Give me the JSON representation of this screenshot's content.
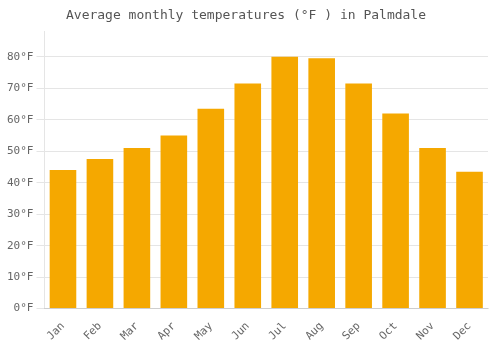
{
  "chart_data": {
    "type": "bar",
    "title": "Average monthly temperatures (°F ) in Palmdale",
    "categories": [
      "Jan",
      "Feb",
      "Mar",
      "Apr",
      "May",
      "Jun",
      "Jul",
      "Aug",
      "Sep",
      "Oct",
      "Nov",
      "Dec"
    ],
    "values": [
      44,
      47.5,
      51,
      55,
      63.5,
      71.5,
      80,
      79.5,
      71.5,
      62,
      51,
      43.5
    ],
    "color": "#F5A800",
    "ylim": [
      0,
      88
    ],
    "yticks": [
      {
        "value": 0,
        "label": "0°F"
      },
      {
        "value": 10,
        "label": "10°F"
      },
      {
        "value": 20,
        "label": "20°F"
      },
      {
        "value": 30,
        "label": "30°F"
      },
      {
        "value": 40,
        "label": "40°F"
      },
      {
        "value": 50,
        "label": "50°F"
      },
      {
        "value": 60,
        "label": "60°F"
      },
      {
        "value": 70,
        "label": "70°F"
      },
      {
        "value": 80,
        "label": "80°F"
      }
    ],
    "grid": true
  }
}
